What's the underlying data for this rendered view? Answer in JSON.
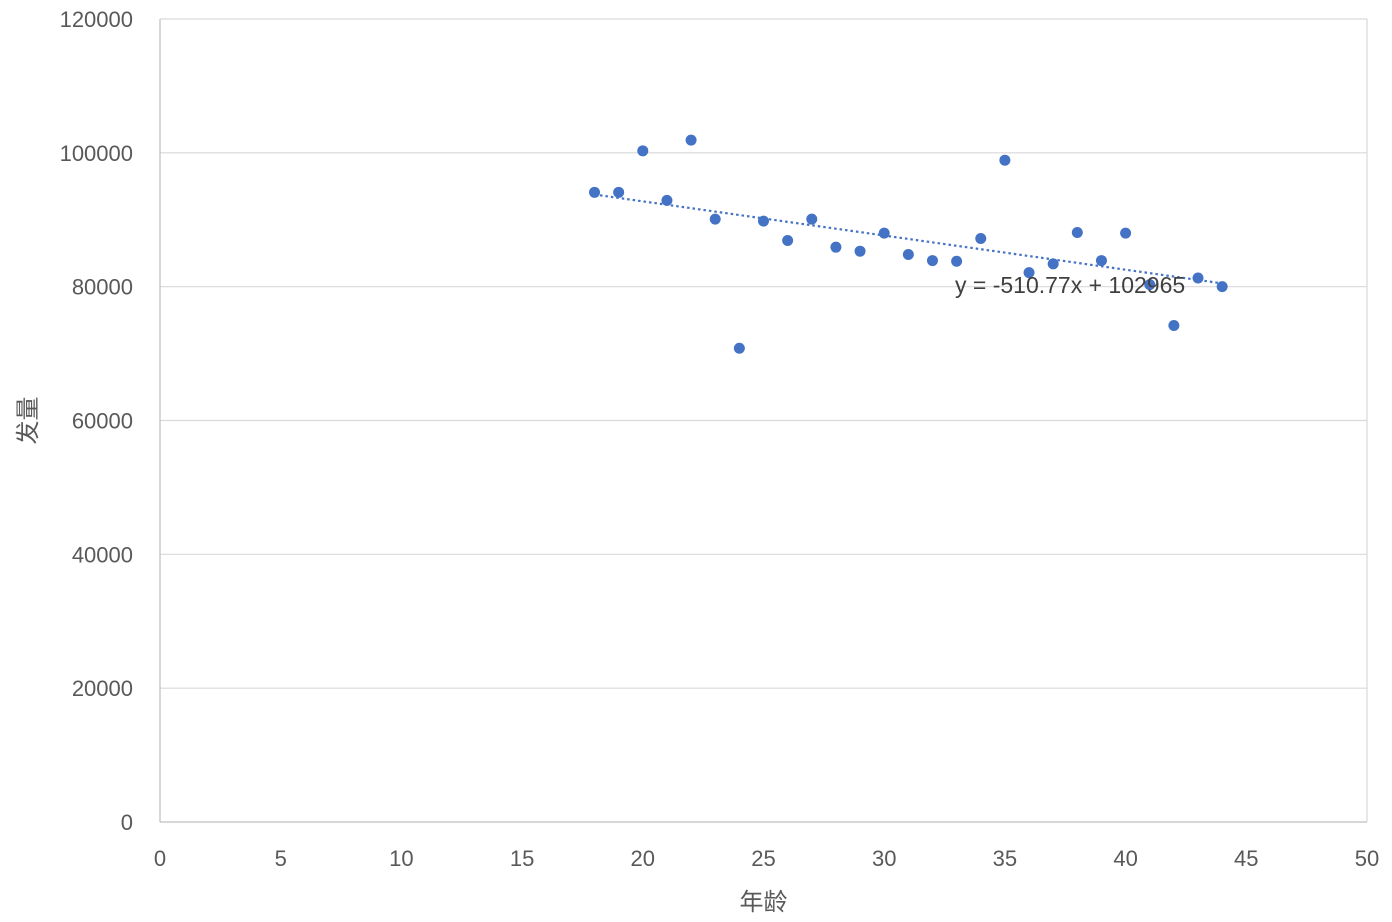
{
  "chart_data": {
    "type": "scatter",
    "title": "",
    "xlabel": "年龄",
    "ylabel": "发量",
    "xlim": [
      0,
      50
    ],
    "ylim": [
      0,
      120000
    ],
    "x_ticks": [
      0,
      5,
      10,
      15,
      20,
      25,
      30,
      35,
      40,
      45,
      50
    ],
    "y_ticks": [
      0,
      20000,
      40000,
      60000,
      80000,
      100000,
      120000
    ],
    "grid": {
      "horizontal": true,
      "vertical": false
    },
    "legend": "none",
    "series": [
      {
        "x": [
          18,
          19,
          20,
          21,
          22,
          23,
          24,
          25,
          26,
          27,
          28,
          29,
          30,
          31,
          32,
          33,
          34,
          35,
          36,
          37,
          38,
          39,
          40,
          41,
          42,
          43,
          44
        ],
        "y": [
          94100,
          94100,
          100300,
          92900,
          101900,
          90100,
          70800,
          89800,
          86900,
          90100,
          85900,
          85300,
          88000,
          84800,
          83900,
          83800,
          87200,
          98900,
          82100,
          83400,
          88100,
          83900,
          88000,
          80300,
          74200,
          81300,
          80000
        ],
        "color": "#4472C4"
      }
    ],
    "trendline": {
      "type": "linear",
      "slope": -510.77,
      "intercept": 102965,
      "x_range": [
        18,
        44
      ],
      "color": "#4472C4",
      "style": "dotted",
      "equation_label": "y = -510.77x + 102965"
    }
  }
}
